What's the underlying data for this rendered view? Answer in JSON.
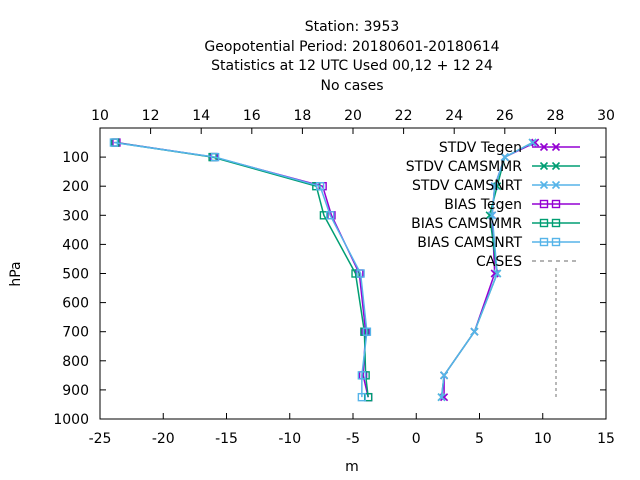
{
  "title_lines": [
    "Station:     3953",
    "Geopotential  Period: 20180601-20180614",
    "Statistics at 12 UTC  Used  00,12  + 12 24",
    "No cases"
  ],
  "colors": {
    "STDV Tegen": "#9400d3",
    "STDV CAMSMMR": "#009e73",
    "STDV CAMSNRT": "#56b4e9",
    "BIAS Tegen": "#9400d3",
    "BIAS CAMSMMR": "#009e73",
    "BIAS CAMSNRT": "#56b4e9",
    "CASES": "#888888"
  },
  "chart_data": {
    "type": "line",
    "xlabel": "m",
    "ylabel": "hPa",
    "x2label": "",
    "xlim": [
      -25,
      15
    ],
    "x2lim": [
      10,
      30
    ],
    "ylim": [
      1000,
      0
    ],
    "x_ticks": [
      -25,
      -20,
      -15,
      -10,
      -5,
      0,
      5,
      10,
      15
    ],
    "x2_ticks": [
      10,
      12,
      14,
      16,
      18,
      20,
      22,
      24,
      26,
      28,
      30
    ],
    "y_ticks": [
      100,
      200,
      300,
      400,
      500,
      600,
      700,
      800,
      900,
      1000
    ],
    "legend_position": "top-right",
    "grid": false,
    "series": [
      {
        "name": "STDV Tegen",
        "marker": "x",
        "axis": "x2",
        "points": [
          [
            27.2,
            50
          ],
          [
            26.0,
            100
          ],
          [
            25.6,
            200
          ],
          [
            25.5,
            300
          ],
          [
            25.6,
            500
          ],
          [
            24.8,
            700
          ],
          [
            23.6,
            850
          ],
          [
            23.6,
            925
          ]
        ]
      },
      {
        "name": "STDV CAMSMMR",
        "marker": "x",
        "axis": "x2",
        "points": [
          [
            27.1,
            50
          ],
          [
            26.0,
            100
          ],
          [
            25.7,
            200
          ],
          [
            25.4,
            300
          ],
          [
            25.7,
            500
          ],
          [
            24.8,
            700
          ],
          [
            23.6,
            850
          ],
          [
            23.5,
            925
          ]
        ]
      },
      {
        "name": "STDV CAMSNRT",
        "marker": "x",
        "axis": "x2",
        "points": [
          [
            27.1,
            50
          ],
          [
            26.0,
            100
          ],
          [
            25.6,
            200
          ],
          [
            25.5,
            300
          ],
          [
            25.7,
            500
          ],
          [
            24.8,
            700
          ],
          [
            23.6,
            850
          ],
          [
            23.5,
            925
          ]
        ]
      },
      {
        "name": "BIAS Tegen",
        "marker": "square",
        "axis": "x",
        "points": [
          [
            -23.7,
            50
          ],
          [
            -16.0,
            100
          ],
          [
            -7.4,
            200
          ],
          [
            -6.7,
            300
          ],
          [
            -4.5,
            500
          ],
          [
            -4.0,
            700
          ],
          [
            -4.2,
            850
          ],
          [
            -3.8,
            925
          ]
        ]
      },
      {
        "name": "BIAS CAMSMMR",
        "marker": "square",
        "axis": "x",
        "points": [
          [
            -23.8,
            50
          ],
          [
            -16.1,
            100
          ],
          [
            -7.9,
            200
          ],
          [
            -7.3,
            300
          ],
          [
            -4.8,
            500
          ],
          [
            -4.1,
            700
          ],
          [
            -4.0,
            850
          ],
          [
            -3.8,
            925
          ]
        ]
      },
      {
        "name": "BIAS CAMSNRT",
        "marker": "square",
        "axis": "x",
        "points": [
          [
            -23.9,
            50
          ],
          [
            -15.9,
            100
          ],
          [
            -7.6,
            200
          ],
          [
            -6.8,
            300
          ],
          [
            -4.4,
            500
          ],
          [
            -3.9,
            700
          ],
          [
            -4.3,
            850
          ],
          [
            -4.3,
            925
          ]
        ]
      },
      {
        "name": "CASES",
        "marker": "none",
        "dashed": true,
        "axis": "x",
        "points": []
      }
    ]
  }
}
